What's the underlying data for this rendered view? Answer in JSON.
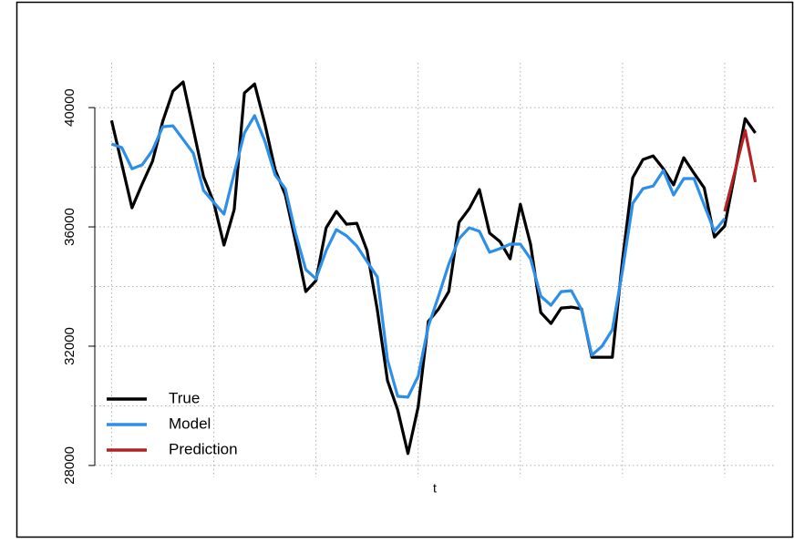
{
  "chart_data": {
    "type": "line",
    "xlabel": "t",
    "x": [
      0,
      10,
      20,
      30,
      40,
      50,
      60,
      70,
      80,
      90,
      100,
      110,
      120,
      130,
      140,
      150,
      160,
      170,
      180,
      190,
      200,
      210,
      220,
      230,
      240,
      250,
      260,
      270,
      280,
      290,
      300,
      310,
      320,
      330,
      340,
      350,
      360,
      370,
      380,
      390,
      400,
      410,
      420,
      430,
      440,
      450,
      460,
      470,
      480,
      490,
      500,
      510,
      520,
      530,
      540,
      550,
      560,
      570,
      580,
      590,
      600,
      610,
      620,
      630
    ],
    "series": [
      {
        "name": "True",
        "color": "#000000",
        "values": [
          39570,
          38110,
          36640,
          37440,
          38200,
          39540,
          40550,
          40860,
          39270,
          37680,
          36820,
          35390,
          36580,
          40490,
          40790,
          39450,
          37920,
          37070,
          35510,
          33830,
          34200,
          35970,
          36520,
          36090,
          36120,
          35210,
          33220,
          30840,
          29860,
          28400,
          29960,
          32830,
          33250,
          33830,
          36150,
          36610,
          37250,
          35790,
          35510,
          34930,
          36760,
          35420,
          33130,
          32760,
          33280,
          33310,
          33250,
          31630,
          31630,
          31630,
          34900,
          37650,
          38260,
          38380,
          37950,
          37410,
          38320,
          37800,
          37310,
          35660,
          36030,
          37800,
          39630,
          39150
        ]
      },
      {
        "name": "Model",
        "color": "#2e8fe8",
        "values": [
          38780,
          38660,
          37950,
          38080,
          38570,
          39360,
          39390,
          38930,
          38470,
          37220,
          36820,
          36430,
          37800,
          39150,
          39730,
          38870,
          37740,
          37280,
          35790,
          34570,
          34260,
          35210,
          35910,
          35700,
          35360,
          34840,
          34320,
          31540,
          30320,
          30290,
          30990,
          32670,
          33680,
          34750,
          35600,
          35970,
          35850,
          35150,
          35270,
          35420,
          35420,
          34930,
          33680,
          33370,
          33830,
          33860,
          33220,
          31700,
          32000,
          32550,
          34540,
          36790,
          37280,
          37370,
          37890,
          37070,
          37620,
          37620,
          36730,
          35850,
          36280,
          null,
          null,
          null
        ]
      },
      {
        "name": "Prediction",
        "color": "#b22222",
        "values": [
          null,
          null,
          null,
          null,
          null,
          null,
          null,
          null,
          null,
          null,
          null,
          null,
          null,
          null,
          null,
          null,
          null,
          null,
          null,
          null,
          null,
          null,
          null,
          null,
          null,
          null,
          null,
          null,
          null,
          null,
          null,
          null,
          null,
          null,
          null,
          null,
          null,
          null,
          null,
          null,
          null,
          null,
          null,
          null,
          null,
          null,
          null,
          null,
          null,
          null,
          null,
          null,
          null,
          null,
          null,
          null,
          null,
          null,
          null,
          null,
          36520,
          37860,
          39240,
          37500
        ]
      }
    ],
    "xlim": [
      -20,
      650
    ],
    "ylim": [
      27600,
      41500
    ],
    "yticks": [
      28000,
      32000,
      36000,
      40000
    ],
    "xgrid": [
      0,
      100,
      200,
      300,
      400,
      500,
      600
    ],
    "ygrid": [
      28000,
      30000,
      32000,
      34000,
      36000,
      38000,
      40000
    ],
    "grid": true,
    "legend": "bottom-left"
  }
}
